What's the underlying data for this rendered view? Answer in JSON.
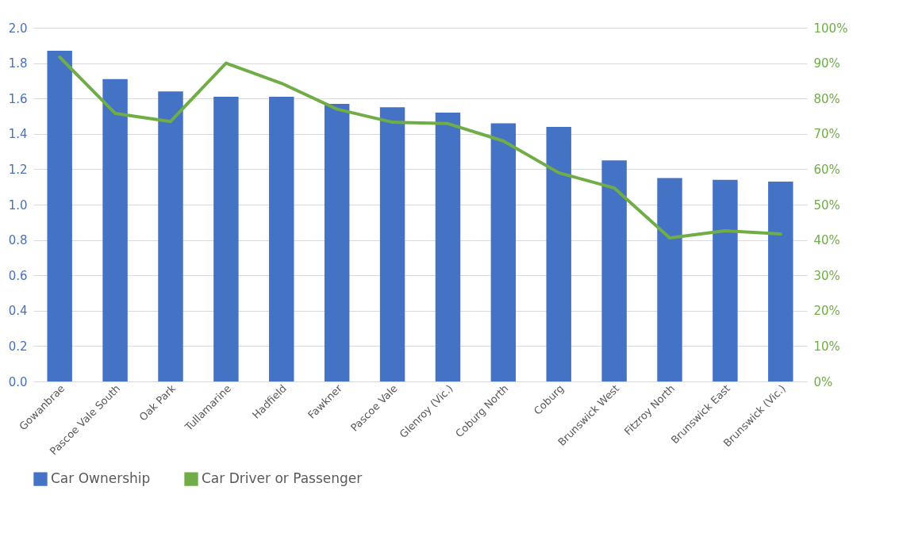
{
  "chart_data": {
    "type": "bar",
    "categories": [
      "Gowanbrae",
      "Pascoe Vale South",
      "Oak Park",
      "Tullamarine",
      "Hadfield",
      "Fawkner",
      "Pascoe Vale",
      "Glenroy (Vic.)",
      "Coburg North",
      "Coburg",
      "Brunswick West",
      "Fitzroy North",
      "Brunswick East",
      "Brunswick (Vic.)"
    ],
    "series": [
      {
        "name": "Car Ownership",
        "color": "#4472c4",
        "values": [
          1.87,
          1.71,
          1.64,
          1.61,
          1.61,
          1.57,
          1.55,
          1.52,
          1.46,
          1.44,
          1.25,
          1.15,
          1.14,
          1.13
        ]
      },
      {
        "name": "Car Driver or Passenger",
        "type": "line",
        "axis": "y2",
        "color": "#70ad47",
        "line_style": "solid",
        "values": [
          91.7,
          75.8,
          73.5,
          90,
          84.3,
          77,
          73.3,
          72.9,
          68,
          59,
          54.7,
          40.6,
          42.6,
          41.7
        ]
      }
    ],
    "ylim": [
      0,
      2
    ],
    "yticks": [
      {
        "value": 0,
        "label": "0.0"
      },
      {
        "value": 0.2,
        "label": "0.2"
      },
      {
        "value": 0.4,
        "label": "0.4"
      },
      {
        "value": 0.6,
        "label": "0.6"
      },
      {
        "value": 0.8,
        "label": "0.8"
      },
      {
        "value": 1,
        "label": "1.0"
      },
      {
        "value": 1.2,
        "label": "1.2"
      },
      {
        "value": 1.4,
        "label": "1.4"
      },
      {
        "value": 1.6,
        "label": "1.6"
      },
      {
        "value": 1.8,
        "label": "1.8"
      },
      {
        "value": 2,
        "label": "2.0"
      }
    ],
    "y2lim": [
      0,
      100
    ],
    "y2ticks": [
      {
        "value": 0,
        "label": "0%"
      },
      {
        "value": 10,
        "label": "10%"
      },
      {
        "value": 20,
        "label": "20%"
      },
      {
        "value": 30,
        "label": "30%"
      },
      {
        "value": 40,
        "label": "40%"
      },
      {
        "value": 50,
        "label": "50%"
      },
      {
        "value": 60,
        "label": "60%"
      },
      {
        "value": 70,
        "label": "70%"
      },
      {
        "value": 80,
        "label": "80%"
      },
      {
        "value": 90,
        "label": "90%"
      },
      {
        "value": 100,
        "label": "100%"
      }
    ],
    "grid": "y",
    "legend": "bottom"
  }
}
